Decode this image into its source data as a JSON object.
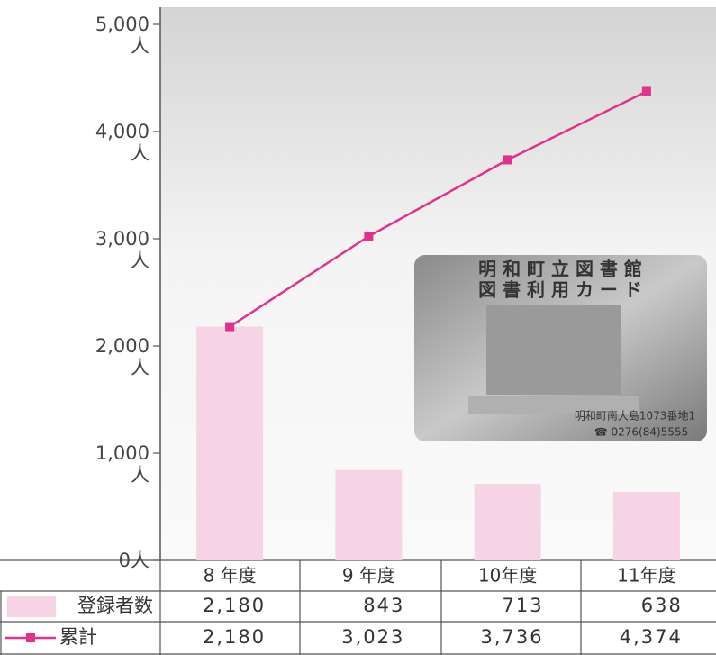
{
  "chart_data": {
    "type": "bar-line",
    "categories": [
      "8 年度",
      "9 年度",
      "10年度",
      "11年度"
    ],
    "series": [
      {
        "name": "登録者数",
        "type": "bar",
        "color": "#f6d3e5",
        "values": [
          2180,
          843,
          713,
          638
        ],
        "value_labels": [
          "2,180",
          "843",
          "713",
          "638"
        ]
      },
      {
        "name": "累計",
        "type": "line",
        "color": "#e2318c",
        "values": [
          2180,
          3023,
          3736,
          4374
        ],
        "value_labels": [
          "2,180",
          "3,023",
          "3,736",
          "4,374"
        ]
      }
    ],
    "ylim": [
      0,
      5000
    ],
    "yticks": [
      {
        "value": 0,
        "label": "0人"
      },
      {
        "value": 1000,
        "label": "1,000人"
      },
      {
        "value": 2000,
        "label": "2,000人"
      },
      {
        "value": 3000,
        "label": "3,000人"
      },
      {
        "value": 4000,
        "label": "4,000人"
      },
      {
        "value": 5000,
        "label": "5,000人"
      }
    ],
    "annotations": [
      "明 和 町 立 図 書 館",
      "図 書 利 用 カ ー ド",
      "明和町南大島1073番地1",
      "☎ 0276(84)5555"
    ]
  }
}
